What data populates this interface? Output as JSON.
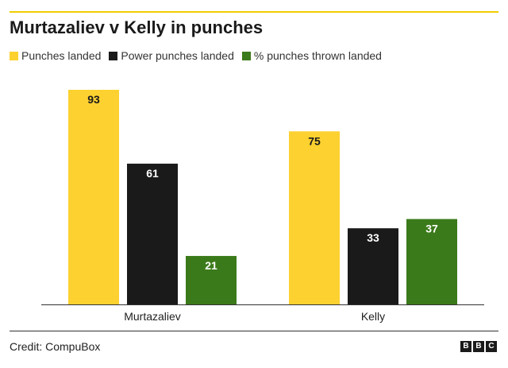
{
  "header": {
    "title": "Murtazaliev v Kelly in punches"
  },
  "legend": {
    "items": [
      {
        "label": "Punches landed",
        "color": "#fdd130"
      },
      {
        "label": "Power punches landed",
        "color": "#1a1a1a"
      },
      {
        "label": "% punches thrown landed",
        "color": "#3b7a1a"
      }
    ]
  },
  "chart_data": {
    "type": "bar",
    "title": "Murtazaliev v Kelly in punches",
    "categories": [
      "Murtazaliev",
      "Kelly"
    ],
    "series": [
      {
        "name": "Punches landed",
        "values": [
          93,
          75
        ],
        "color": "#fdd130",
        "label_color": "#1a1a1a"
      },
      {
        "name": "Power punches landed",
        "values": [
          61,
          33
        ],
        "color": "#1a1a1a",
        "label_color": "#ffffff"
      },
      {
        "name": "% punches thrown landed",
        "values": [
          21,
          37
        ],
        "color": "#3b7a1a",
        "label_color": "#ffffff"
      }
    ],
    "ylim": [
      0,
      93
    ],
    "grid": false,
    "legend_position": "top-left",
    "data_labels": true
  },
  "footer": {
    "credit": "Credit: CompuBox",
    "logo_letters": [
      "B",
      "B",
      "C"
    ]
  }
}
